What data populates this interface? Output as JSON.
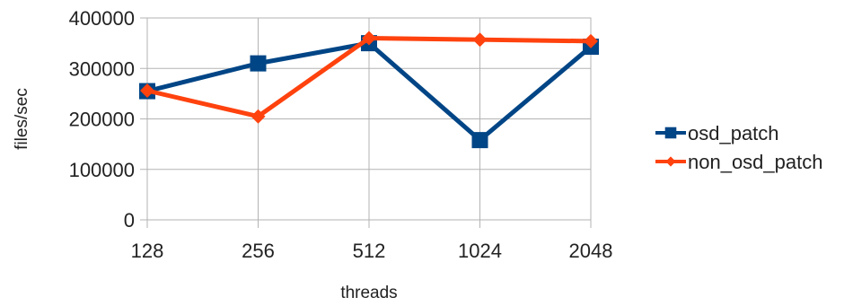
{
  "chart_data": {
    "type": "line",
    "title": "",
    "xlabel": "threads",
    "ylabel": "files/sec",
    "categories": [
      "128",
      "256",
      "512",
      "1024",
      "2048"
    ],
    "ylim": [
      0,
      400000
    ],
    "yticks": [
      "0",
      "100000",
      "200000",
      "300000",
      "400000"
    ],
    "grid": true,
    "legend_position": "right",
    "series": [
      {
        "name": "osd_patch",
        "color": "#004586",
        "marker": "square",
        "values": [
          255000,
          310000,
          350000,
          158000,
          343000
        ]
      },
      {
        "name": "non_osd_patch",
        "color": "#ff420e",
        "marker": "diamond",
        "values": [
          256000,
          205000,
          360000,
          357000,
          354000
        ]
      }
    ]
  }
}
